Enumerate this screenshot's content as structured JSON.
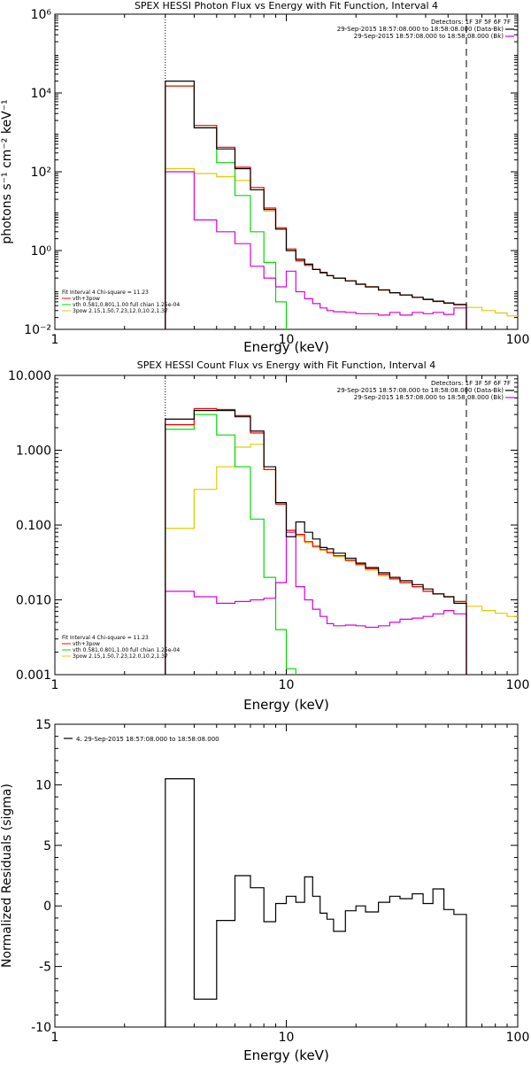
{
  "chart_data": [
    {
      "type": "line",
      "title": "SPEX HESSI Photon Flux vs Energy with Fit Function, Interval 4",
      "xlabel": "Energy (keV)",
      "ylabel": "photons s⁻¹ cm⁻² keV⁻¹",
      "x_scale": "log",
      "y_scale": "log",
      "xlim": [
        1,
        100
      ],
      "ylim": [
        0.01,
        1000000
      ],
      "grid": false,
      "x_ticks": [
        1,
        10,
        100
      ],
      "x_tick_labels": [
        "1",
        "10",
        "100"
      ],
      "y_ticks": [
        0.01,
        1,
        100,
        10000,
        1000000
      ],
      "y_tick_labels": [
        "10⁻²",
        "10⁰",
        "10²",
        "10⁴",
        "10⁶"
      ],
      "vlines": [
        {
          "x": 3.0,
          "style": "dotted"
        },
        {
          "x": 60,
          "style": "dashed"
        }
      ],
      "legend_top_right": {
        "detectors": "Detectors: 1F 3F 5F 6F 7F",
        "line1": "29-Sep-2015 18:57:08.000 to 18:58:08.000 (Data-Bk)",
        "line2": "29-Sep-2015 18:57:08.000 to 18:58:08.000 (Bk)"
      },
      "legend_bottom_left": {
        "title": "Fit Interval 4   Chi-square = 11.23",
        "entries": [
          "vth+3pow",
          "vth 0.581,0.801,1.00  full chian 1.25e-04",
          "3pow 2.15,1.50,7.23,12.0,10.2,1.37"
        ]
      },
      "bin_edges": [
        3,
        4,
        5,
        6,
        7,
        8,
        9,
        10,
        11,
        12,
        13,
        14,
        15,
        16,
        18,
        20,
        22,
        25,
        28,
        31,
        35,
        39,
        43,
        48,
        53,
        60
      ],
      "series": [
        {
          "name": "Data-Bk",
          "color": "#000000",
          "bins": [
            3,
            4,
            5,
            6,
            7,
            8,
            9,
            10,
            11,
            12,
            13,
            14,
            15,
            16,
            18,
            20,
            22,
            25,
            28,
            31,
            35,
            39,
            43,
            48,
            53,
            60
          ],
          "values": [
            20000,
            1300,
            380,
            120,
            35,
            11,
            3.5,
            1.0,
            0.6,
            0.45,
            0.33,
            0.28,
            0.23,
            0.2,
            0.17,
            0.14,
            0.12,
            0.1,
            0.085,
            0.075,
            0.065,
            0.058,
            0.052,
            0.047,
            0.043
          ]
        },
        {
          "name": "vth+3pow",
          "color": "#ff0000",
          "bins": [
            3,
            4,
            5,
            6,
            7,
            8,
            9,
            10,
            11,
            12,
            13,
            14,
            15,
            16,
            18,
            20,
            22,
            25,
            28,
            31,
            35,
            39,
            43,
            48,
            53,
            60
          ],
          "values": [
            15000,
            1500,
            420,
            130,
            40,
            12,
            3.8,
            1.1,
            0.55,
            0.42,
            0.33,
            0.27,
            0.23,
            0.2,
            0.17,
            0.14,
            0.12,
            0.1,
            0.085,
            0.075,
            0.065,
            0.057,
            0.051,
            0.046,
            0.042
          ]
        },
        {
          "name": "vth",
          "color": "#00dd00",
          "bins": [
            3,
            4,
            5,
            6,
            7,
            8,
            9,
            10
          ],
          "values": [
            15000,
            1300,
            170,
            25,
            3,
            0.5,
            0.05
          ]
        },
        {
          "name": "3pow",
          "color": "#ddcc00",
          "bins": [
            3,
            4,
            5,
            6,
            7,
            8,
            9,
            10,
            11,
            12,
            13,
            14,
            15,
            16,
            18,
            20,
            22,
            25,
            28,
            31,
            35,
            39,
            43,
            48,
            53,
            60,
            70,
            80,
            90,
            100
          ],
          "values": [
            120,
            90,
            75,
            60,
            35,
            10,
            3.5,
            1.0,
            0.6,
            0.45,
            0.33,
            0.27,
            0.23,
            0.2,
            0.17,
            0.14,
            0.12,
            0.1,
            0.085,
            0.075,
            0.065,
            0.057,
            0.051,
            0.046,
            0.042,
            0.036,
            0.03,
            0.026,
            0.022
          ]
        },
        {
          "name": "Bk",
          "color": "#dd00dd",
          "bins": [
            3,
            4,
            5,
            6,
            7,
            8,
            9,
            10,
            11,
            12,
            13,
            14,
            15,
            16,
            18,
            20,
            22,
            25,
            28,
            31,
            35,
            39,
            43,
            48,
            53,
            60
          ],
          "values": [
            100,
            6,
            3,
            1.5,
            0.4,
            0.2,
            0.12,
            0.3,
            0.09,
            0.06,
            0.045,
            0.035,
            0.03,
            0.028,
            0.027,
            0.025,
            0.025,
            0.023,
            0.027,
            0.023,
            0.027,
            0.025,
            0.027,
            0.024,
            0.035
          ]
        }
      ]
    },
    {
      "type": "line",
      "title": "SPEX HESSI Count Flux vs Energy with Fit Function, Interval 4",
      "xlabel": "Energy (keV)",
      "ylabel": "",
      "x_scale": "log",
      "y_scale": "log",
      "xlim": [
        1,
        100
      ],
      "ylim": [
        0.001,
        10
      ],
      "grid": false,
      "x_ticks": [
        1,
        10,
        100
      ],
      "x_tick_labels": [
        "1",
        "10",
        "100"
      ],
      "y_ticks": [
        0.001,
        0.01,
        0.1,
        1,
        10
      ],
      "y_tick_labels": [
        "0.001",
        "0.010",
        "0.100",
        "1.000",
        "10.000"
      ],
      "vlines": [
        {
          "x": 3.0,
          "style": "dotted"
        },
        {
          "x": 60,
          "style": "dashed"
        }
      ],
      "legend_top_right": {
        "detectors": "Detectors: 1F 3F 5F 6F 7F",
        "line1": "29-Sep-2015 18:57:08.000 to 18:58:08.000 (Data-Bk)",
        "line2": "29-Sep-2015 18:57:08.000 to 18:58:08.000 (Bk)"
      },
      "legend_bottom_left": {
        "title": "Fit Interval 4   Chi-square = 11.23",
        "entries": [
          "vth+3pow",
          "vth 0.581,0.801,1.00  full chian 1.25e-04",
          "3pow 2.15,1.50,7.23,12.0,10.2,1.37"
        ]
      },
      "series": [
        {
          "name": "Data-Bk",
          "color": "#000000",
          "bins": [
            3,
            4,
            5,
            6,
            7,
            8,
            9,
            10,
            11,
            12,
            13,
            14,
            15,
            16,
            18,
            20,
            22,
            25,
            28,
            31,
            35,
            39,
            43,
            48,
            53,
            60
          ],
          "values": [
            2.6,
            3.4,
            3.4,
            2.8,
            1.8,
            0.6,
            0.2,
            0.07,
            0.11,
            0.08,
            0.065,
            0.05,
            0.048,
            0.042,
            0.036,
            0.031,
            0.027,
            0.023,
            0.02,
            0.018,
            0.016,
            0.014,
            0.012,
            0.011,
            0.009
          ]
        },
        {
          "name": "vth+3pow",
          "color": "#ff0000",
          "bins": [
            3,
            4,
            5,
            6,
            7,
            8,
            9,
            10,
            11,
            12,
            13,
            14,
            15,
            16,
            18,
            20,
            22,
            25,
            28,
            31,
            35,
            39,
            43,
            48,
            53,
            60
          ],
          "values": [
            2.2,
            3.6,
            3.5,
            2.9,
            1.7,
            0.55,
            0.19,
            0.085,
            0.075,
            0.06,
            0.052,
            0.047,
            0.043,
            0.039,
            0.034,
            0.03,
            0.026,
            0.022,
            0.019,
            0.017,
            0.015,
            0.013,
            0.012,
            0.011,
            0.0095
          ]
        },
        {
          "name": "vth",
          "color": "#00dd00",
          "bins": [
            3,
            4,
            5,
            6,
            7,
            8,
            9,
            10,
            11
          ],
          "values": [
            1.9,
            3.0,
            1.6,
            0.6,
            0.12,
            0.02,
            0.004,
            0.0012
          ]
        },
        {
          "name": "3pow",
          "color": "#ddcc00",
          "bins": [
            3,
            4,
            5,
            6,
            7,
            8,
            9,
            10,
            11,
            12,
            13,
            14,
            15,
            16,
            18,
            20,
            22,
            25,
            28,
            31,
            35,
            39,
            43,
            48,
            53,
            60,
            70,
            80,
            90,
            100
          ],
          "values": [
            0.09,
            0.3,
            0.6,
            1.1,
            1.2,
            0.55,
            0.19,
            0.085,
            0.072,
            0.058,
            0.051,
            0.046,
            0.042,
            0.038,
            0.033,
            0.029,
            0.025,
            0.021,
            0.019,
            0.017,
            0.015,
            0.013,
            0.012,
            0.011,
            0.0095,
            0.0082,
            0.0072,
            0.0066,
            0.006
          ]
        },
        {
          "name": "Bk",
          "color": "#dd00dd",
          "bins": [
            3,
            4,
            5,
            6,
            7,
            8,
            9,
            10,
            11,
            12,
            13,
            14,
            15,
            16,
            18,
            20,
            22,
            25,
            28,
            31,
            35,
            39,
            43,
            48,
            53,
            60
          ],
          "values": [
            0.013,
            0.011,
            0.009,
            0.0095,
            0.01,
            0.0105,
            0.017,
            0.08,
            0.015,
            0.01,
            0.0075,
            0.006,
            0.0048,
            0.0045,
            0.0046,
            0.0045,
            0.0043,
            0.0045,
            0.005,
            0.0055,
            0.0057,
            0.006,
            0.0065,
            0.0072,
            0.0065
          ]
        }
      ]
    },
    {
      "type": "line",
      "title": "",
      "xlabel": "Energy (keV)",
      "ylabel": "Normalized Residuals (sigma)",
      "x_scale": "log",
      "y_scale": "linear",
      "xlim": [
        1,
        100
      ],
      "ylim": [
        -10,
        15
      ],
      "grid": false,
      "x_ticks": [
        1,
        10,
        100
      ],
      "x_tick_labels": [
        "1",
        "10",
        "100"
      ],
      "y_ticks": [
        -10,
        -5,
        0,
        5,
        10,
        15
      ],
      "y_tick_labels": [
        "-10",
        "-5",
        "0",
        "5",
        "10",
        "15"
      ],
      "legend": "4. 29-Sep-2015 18:57:08.000 to 18:58:08.000",
      "series": [
        {
          "name": "Interval 4",
          "color": "#000000",
          "bins": [
            3,
            4,
            5,
            6,
            7,
            8,
            9,
            10,
            11,
            12,
            13,
            14,
            15,
            16,
            18,
            20,
            22,
            25,
            28,
            31,
            35,
            39,
            43,
            48,
            53,
            60
          ],
          "values": [
            10.5,
            -7.7,
            -1.2,
            2.5,
            1.5,
            -1.3,
            0.2,
            0.8,
            0.3,
            2.4,
            0.8,
            -0.6,
            -1.1,
            -2.1,
            -0.4,
            0.0,
            -0.5,
            0.3,
            0.8,
            0.6,
            1.0,
            0.2,
            1.4,
            -0.3,
            -0.7
          ]
        }
      ]
    }
  ]
}
